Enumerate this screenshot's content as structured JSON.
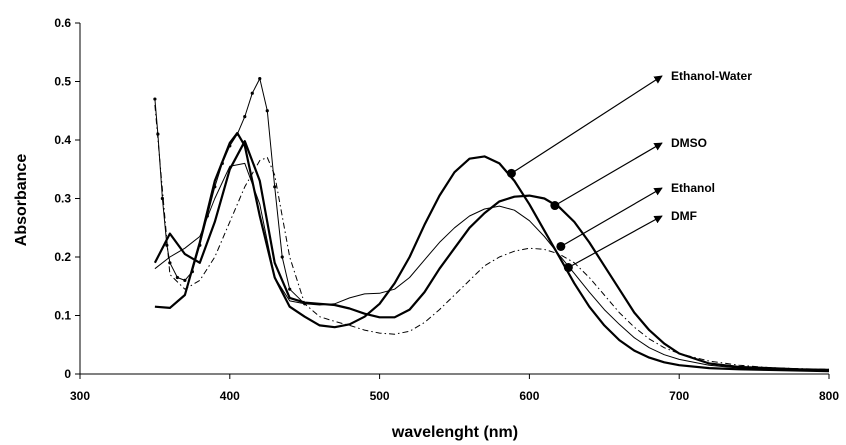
{
  "chart_data": {
    "type": "line",
    "xlabel": "wavelenght (nm)",
    "ylabel": "Absorbance",
    "xlim": [
      300,
      800
    ],
    "ylim": [
      0,
      0.6
    ],
    "xticks": [
      300,
      400,
      500,
      600,
      700,
      800
    ],
    "yticks": [
      0,
      0.1,
      0.2,
      0.3,
      0.4,
      0.5,
      0.6
    ],
    "grid": false,
    "series": [
      {
        "name": "Ethanol-Water",
        "style": "solid-thick",
        "x": [
          350,
          360,
          370,
          380,
          390,
          400,
          405,
          410,
          420,
          430,
          440,
          450,
          460,
          470,
          480,
          490,
          500,
          510,
          520,
          530,
          540,
          550,
          560,
          570,
          580,
          590,
          600,
          610,
          620,
          630,
          640,
          650,
          660,
          670,
          680,
          690,
          700,
          720,
          740,
          760,
          780,
          800
        ],
        "y": [
          0.115,
          0.113,
          0.135,
          0.225,
          0.33,
          0.395,
          0.412,
          0.39,
          0.27,
          0.165,
          0.115,
          0.098,
          0.083,
          0.08,
          0.085,
          0.098,
          0.12,
          0.155,
          0.2,
          0.255,
          0.305,
          0.345,
          0.368,
          0.372,
          0.36,
          0.33,
          0.29,
          0.245,
          0.2,
          0.155,
          0.115,
          0.083,
          0.058,
          0.04,
          0.028,
          0.02,
          0.015,
          0.01,
          0.008,
          0.007,
          0.006,
          0.005
        ]
      },
      {
        "name": "DMSO",
        "style": "solid-thick",
        "x": [
          350,
          360,
          370,
          380,
          390,
          400,
          410,
          420,
          430,
          440,
          450,
          460,
          470,
          480,
          490,
          500,
          510,
          520,
          530,
          540,
          550,
          560,
          570,
          580,
          590,
          600,
          610,
          620,
          630,
          640,
          650,
          660,
          670,
          680,
          690,
          700,
          720,
          740,
          760,
          780,
          800
        ],
        "y": [
          0.19,
          0.24,
          0.205,
          0.19,
          0.26,
          0.35,
          0.398,
          0.33,
          0.19,
          0.13,
          0.122,
          0.12,
          0.118,
          0.112,
          0.103,
          0.097,
          0.097,
          0.11,
          0.14,
          0.18,
          0.215,
          0.25,
          0.275,
          0.295,
          0.303,
          0.305,
          0.3,
          0.285,
          0.26,
          0.225,
          0.185,
          0.145,
          0.105,
          0.075,
          0.052,
          0.035,
          0.018,
          0.012,
          0.01,
          0.008,
          0.007
        ]
      },
      {
        "name": "Ethanol",
        "style": "solid-thin",
        "x": [
          350,
          360,
          370,
          380,
          390,
          400,
          410,
          420,
          430,
          440,
          450,
          460,
          470,
          480,
          490,
          500,
          510,
          520,
          530,
          540,
          550,
          560,
          570,
          580,
          590,
          600,
          610,
          620,
          630,
          640,
          650,
          660,
          670,
          680,
          690,
          700,
          720,
          740,
          760,
          780,
          800
        ],
        "y": [
          0.18,
          0.2,
          0.215,
          0.235,
          0.3,
          0.355,
          0.36,
          0.29,
          0.165,
          0.125,
          0.12,
          0.118,
          0.12,
          0.13,
          0.137,
          0.138,
          0.145,
          0.165,
          0.195,
          0.225,
          0.25,
          0.27,
          0.282,
          0.287,
          0.28,
          0.262,
          0.235,
          0.203,
          0.172,
          0.14,
          0.11,
          0.085,
          0.062,
          0.045,
          0.033,
          0.025,
          0.015,
          0.01,
          0.008,
          0.007,
          0.006
        ]
      },
      {
        "name": "DMF",
        "style": "dash-dot",
        "x": [
          350,
          360,
          370,
          380,
          390,
          400,
          410,
          420,
          425,
          430,
          440,
          450,
          460,
          470,
          480,
          490,
          500,
          510,
          520,
          530,
          540,
          550,
          560,
          570,
          580,
          590,
          600,
          610,
          620,
          630,
          640,
          650,
          660,
          670,
          680,
          690,
          700,
          720,
          740,
          760,
          780,
          800
        ],
        "y": [
          0.46,
          0.17,
          0.145,
          0.16,
          0.2,
          0.26,
          0.32,
          0.365,
          0.37,
          0.34,
          0.2,
          0.12,
          0.098,
          0.09,
          0.083,
          0.075,
          0.07,
          0.068,
          0.073,
          0.088,
          0.11,
          0.135,
          0.16,
          0.185,
          0.2,
          0.21,
          0.215,
          0.213,
          0.205,
          0.19,
          0.165,
          0.135,
          0.105,
          0.08,
          0.06,
          0.045,
          0.035,
          0.022,
          0.015,
          0.011,
          0.009,
          0.008
        ]
      },
      {
        "style": "dotted-markers",
        "x": [
          350,
          352,
          355,
          358,
          360,
          365,
          370,
          375,
          380,
          385,
          390,
          395,
          400,
          405,
          410,
          415,
          420,
          425,
          430,
          435,
          440,
          450
        ],
        "y": [
          0.47,
          0.41,
          0.3,
          0.22,
          0.19,
          0.165,
          0.16,
          0.175,
          0.22,
          0.27,
          0.32,
          0.36,
          0.39,
          0.41,
          0.44,
          0.48,
          0.505,
          0.45,
          0.32,
          0.2,
          0.145,
          0.12
        ]
      }
    ],
    "annotations": [
      {
        "label": "Ethanol-Water",
        "series": "Ethanol-Water",
        "at": [
          588,
          0.343
        ]
      },
      {
        "label": "DMSO",
        "series": "DMSO",
        "at": [
          617,
          0.288
        ]
      },
      {
        "label": "Ethanol",
        "series": "Ethanol",
        "at": [
          621,
          0.218
        ]
      },
      {
        "label": "DMF",
        "series": "DMF",
        "at": [
          626,
          0.182
        ]
      }
    ]
  }
}
